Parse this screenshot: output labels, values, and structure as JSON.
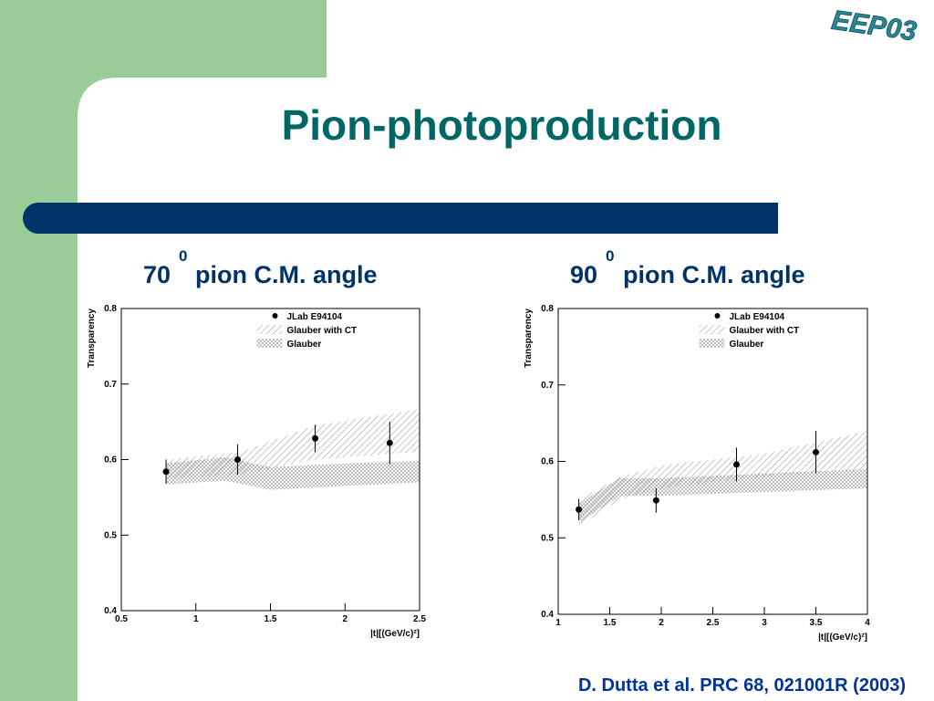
{
  "slide": {
    "title": "Pion-photoproduction",
    "logo": "EEP03",
    "citation": "D. Dutta et al. PRC 68,  021001R (2003)"
  },
  "chart_data": [
    {
      "type": "scatter",
      "title": "70",
      "title_superscript": "0",
      "title_rest": "pion C.M. angle",
      "ylabel": "Transparency",
      "xlabel": "|t|[(GeV/c)²]",
      "xlim": [
        0.5,
        2.5
      ],
      "xticks": [
        0.5,
        1,
        1.5,
        2,
        2.5
      ],
      "ylim": [
        0.4,
        0.8
      ],
      "yticks": [
        0.4,
        0.5,
        0.6,
        0.7,
        0.8
      ],
      "legend": "top-right",
      "series": [
        {
          "name": "JLab E94104",
          "color": "#000000",
          "x": [
            0.8,
            1.28,
            1.8,
            2.3
          ],
          "values": [
            0.584,
            0.6,
            0.628,
            0.622
          ],
          "errors": [
            0.016,
            0.02,
            0.018,
            0.028
          ]
        },
        {
          "name": "Glauber with CT",
          "color": "#888888",
          "x": [
            0.8,
            1.3,
            1.8,
            2.5
          ],
          "lower": [
            0.575,
            0.58,
            0.6,
            0.61
          ],
          "upper": [
            0.6,
            0.61,
            0.645,
            0.667
          ]
        },
        {
          "name": "Glauber",
          "color": "#999999",
          "x": [
            0.8,
            1.2,
            1.5,
            2.0,
            2.5
          ],
          "lower": [
            0.567,
            0.572,
            0.56,
            0.565,
            0.57
          ],
          "upper": [
            0.595,
            0.603,
            0.59,
            0.595,
            0.598
          ]
        }
      ]
    },
    {
      "type": "scatter",
      "title": "90",
      "title_superscript": "0",
      "title_rest": "pion C.M. angle",
      "ylabel": "Transparency",
      "xlabel": "|t|[(GeV/c)²]",
      "xlim": [
        1,
        4
      ],
      "xticks": [
        1,
        1.5,
        2,
        2.5,
        3,
        3.5,
        4
      ],
      "ylim": [
        0.4,
        0.8
      ],
      "yticks": [
        0.4,
        0.5,
        0.6,
        0.7,
        0.8
      ],
      "legend": "top-right",
      "series": [
        {
          "name": "JLab E94104",
          "color": "#000000",
          "x": [
            1.2,
            1.95,
            2.73,
            3.5
          ],
          "values": [
            0.537,
            0.549,
            0.596,
            0.612
          ],
          "errors": [
            0.014,
            0.016,
            0.022,
            0.028
          ]
        },
        {
          "name": "Glauber with CT",
          "color": "#888888",
          "x": [
            1.2,
            1.6,
            2.0,
            3.0,
            4.0
          ],
          "lower": [
            0.515,
            0.55,
            0.565,
            0.58,
            0.59
          ],
          "upper": [
            0.55,
            0.58,
            0.595,
            0.61,
            0.64
          ]
        },
        {
          "name": "Glauber",
          "color": "#999999",
          "x": [
            1.2,
            1.6,
            2.0,
            4.0
          ],
          "lower": [
            0.52,
            0.555,
            0.555,
            0.565
          ],
          "upper": [
            0.545,
            0.578,
            0.578,
            0.59
          ]
        }
      ]
    }
  ]
}
